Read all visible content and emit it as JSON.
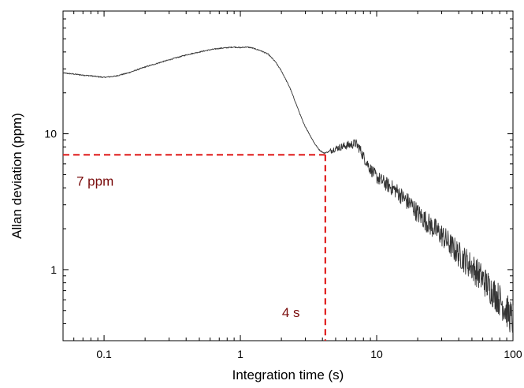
{
  "chart_data": {
    "type": "line",
    "title": "",
    "xlabel": "Integration time (s)",
    "ylabel": "Allan deviation (ppm)",
    "xscale": "log",
    "yscale": "log",
    "xlim": [
      0.05,
      100
    ],
    "ylim": [
      0.3,
      80
    ],
    "grid": false,
    "x_ticks": [
      {
        "value": 0.1,
        "label": "0.1"
      },
      {
        "value": 1,
        "label": "1"
      },
      {
        "value": 10,
        "label": "10"
      },
      {
        "value": 100,
        "label": "100"
      }
    ],
    "y_ticks": [
      {
        "value": 1,
        "label": "1"
      },
      {
        "value": 10,
        "label": "10"
      }
    ],
    "series": [
      {
        "color": "#333333",
        "x": [
          0.05,
          0.06,
          0.07,
          0.08,
          0.09,
          0.1,
          0.12,
          0.15,
          0.2,
          0.3,
          0.4,
          0.5,
          0.6,
          0.7,
          0.8,
          0.9,
          1.0,
          1.1,
          1.2,
          1.4,
          1.6,
          1.8,
          2.0,
          2.3,
          2.6,
          2.9,
          3.2,
          3.5,
          3.8,
          4.1,
          4.5,
          5.0,
          5.5,
          6.0,
          6.5,
          7.0,
          7.5,
          8.0,
          9.0,
          10,
          12,
          14,
          16,
          18,
          20,
          25,
          30,
          35,
          40,
          50,
          60,
          70,
          80,
          90,
          100
        ],
        "y": [
          28,
          27.5,
          27,
          26.7,
          26.3,
          26,
          26.5,
          28,
          31,
          35,
          38,
          40,
          41.5,
          42.5,
          43,
          43.5,
          43,
          43.5,
          43,
          41,
          38.5,
          34,
          29,
          22,
          16,
          12,
          10,
          8.5,
          7.6,
          7.2,
          7.4,
          7.8,
          8.0,
          8.2,
          8.3,
          8.5,
          7.8,
          6.8,
          5.5,
          4.8,
          4.2,
          3.8,
          3.3,
          3.0,
          2.6,
          2.1,
          1.8,
          1.5,
          1.3,
          1.05,
          0.85,
          0.7,
          0.6,
          0.5,
          0.42
        ],
        "noise": "increasing scatter beyond ~5 s"
      }
    ],
    "annotations": [
      {
        "label": "7 ppm",
        "x": 0.05,
        "y": 7,
        "color": "#7a0c0c",
        "line": "horizontal",
        "line_color": "#e02020",
        "line_style": "dashed",
        "to_x": 4.2
      },
      {
        "label": "4 s",
        "x": 4.2,
        "y": 0.3,
        "color": "#7a0c0c",
        "line": "vertical",
        "line_color": "#e02020",
        "line_style": "dashed",
        "to_y": 7
      }
    ]
  }
}
